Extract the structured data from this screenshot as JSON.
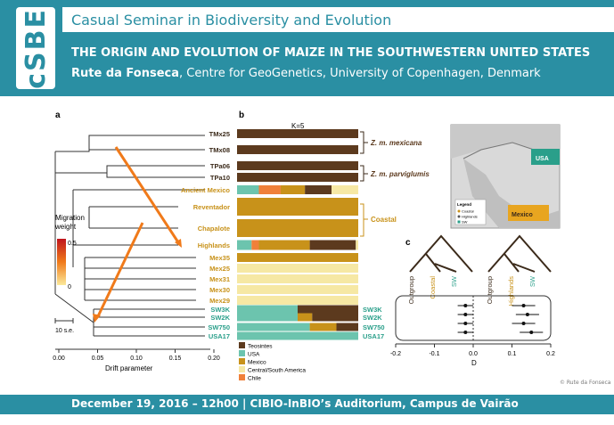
{
  "header": {
    "logo_text": "cSBE",
    "series_title": "Casual Seminar in Biodiversity and Evolution",
    "talk_title": "THE ORIGIN AND EVOLUTION OF MAIZE IN THE SOUTHWESTERN UNITED STATES",
    "speaker": "Rute da Fonseca",
    "affiliation": ", Centre for GeoGenetics, University of Copenhagen, Denmark"
  },
  "footer": {
    "event_info": "December 19, 2016 – 12h00 | CIBIO-InBIO’s Auditorium, Campus de Vairão",
    "credit": "© Rute da Fonseca"
  },
  "figure": {
    "panel_a_label": "a",
    "panel_b_label": "b",
    "panel_c_label": "c",
    "k_label": "K=5",
    "taxa": [
      "TMx25",
      "TMx08",
      "TPa06",
      "TPa10",
      "Ancient Mexico",
      "Reventador",
      "Chapalote",
      "Highlands",
      "Mex35",
      "Mex25",
      "Mex31",
      "Mex30",
      "Mex29",
      "SW3K",
      "SW2K",
      "SW750",
      "USA17"
    ],
    "group_labels": {
      "mexicana": "Z. m. mexicana",
      "parviglumis": "Z. m. parviglumis",
      "coastal": "Coastal"
    },
    "migration_label_1": "Migration",
    "migration_label_2": "weight",
    "migration_ticks": [
      "0.5",
      "0"
    ],
    "scale_label": "10 s.e.",
    "drift_ticks": [
      "0.00",
      "0.05",
      "0.10",
      "0.15",
      "0.20"
    ],
    "drift_label": "Drift parameter",
    "legend": [
      {
        "name": "Teosintes",
        "color": "#5c3a1e"
      },
      {
        "name": "USA",
        "color": "#6cc4ae"
      },
      {
        "name": "Mexico",
        "color": "#c8921a"
      },
      {
        "name": "Central/South America",
        "color": "#f6e8a4"
      },
      {
        "name": "Chile",
        "color": "#f0803a"
      }
    ],
    "map_labels": {
      "usa": "USA",
      "mexico": "Mexico",
      "legend_title": "Legend",
      "legend_items": [
        "Coastal",
        "Highlands",
        "SW"
      ]
    },
    "dstat_tree_labels": [
      "Outgroup",
      "Coastal",
      "Highlands",
      "SW"
    ],
    "dstat_rows": [
      "SW3K",
      "SW2K",
      "SW750",
      "USA17"
    ],
    "dstat_axis": [
      "-0.2",
      "-0.1",
      "0.0",
      "0.1",
      "0.2"
    ],
    "dstat_xlabel": "D"
  }
}
